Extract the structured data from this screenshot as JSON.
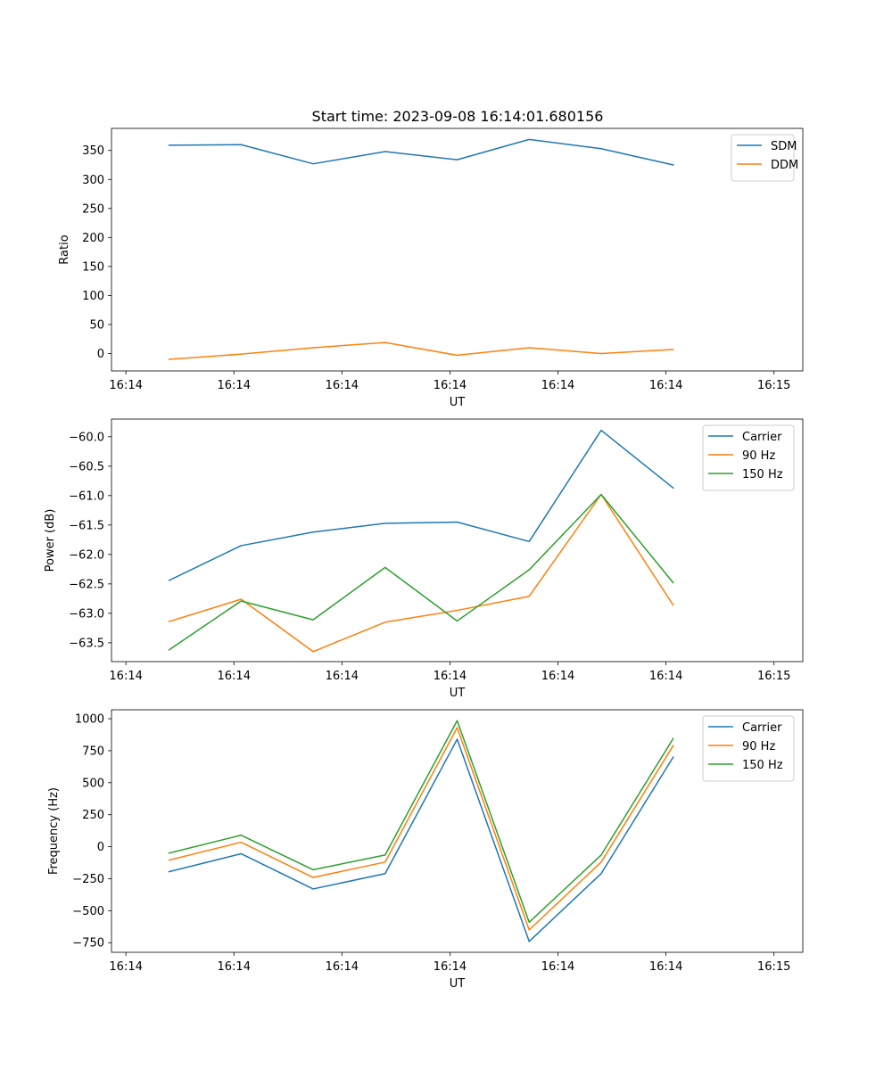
{
  "figure_title": "Start time: 2023-09-08 16:14:01.680156",
  "colors": {
    "blue": "#1f77b4",
    "orange": "#ff7f0e",
    "green": "#2ca02c"
  },
  "chart_data": [
    {
      "type": "line",
      "title": "Start time: 2023-09-08 16:14:01.680156",
      "xlabel": "UT",
      "ylabel": "Ratio",
      "xlim": [
        -0.8,
        8.8
      ],
      "ylim": [
        -30,
        388
      ],
      "x_ticks": [
        -0.6,
        0.9,
        2.4,
        3.9,
        5.4,
        6.9,
        8.4
      ],
      "x_tick_labels": [
        "16:14",
        "16:14",
        "16:14",
        "16:14",
        "16:14",
        "16:14",
        "16:15"
      ],
      "y_ticks": [
        0,
        50,
        100,
        150,
        200,
        250,
        300,
        350
      ],
      "y_tick_labels": [
        "0",
        "50",
        "100",
        "150",
        "200",
        "250",
        "300",
        "350"
      ],
      "x": [
        0,
        1,
        2,
        3,
        4,
        5,
        6,
        7
      ],
      "legend_location": "upper right",
      "series": [
        {
          "name": "SDM",
          "color": "#1f77b4",
          "values": [
            359,
            360,
            327,
            348,
            334,
            369,
            353,
            325
          ]
        },
        {
          "name": "DDM",
          "color": "#ff7f0e",
          "values": [
            -10,
            -1,
            10,
            19,
            -3,
            10,
            0,
            7
          ]
        }
      ]
    },
    {
      "type": "line",
      "title": "",
      "xlabel": "UT",
      "ylabel": "Power (dB)",
      "xlim": [
        -0.8,
        8.8
      ],
      "ylim": [
        -63.82,
        -59.7
      ],
      "x_ticks": [
        -0.6,
        0.9,
        2.4,
        3.9,
        5.4,
        6.9,
        8.4
      ],
      "x_tick_labels": [
        "16:14",
        "16:14",
        "16:14",
        "16:14",
        "16:14",
        "16:14",
        "16:15"
      ],
      "y_ticks": [
        -63.5,
        -63.0,
        -62.5,
        -62.0,
        -61.5,
        -61.0,
        -60.5,
        -60.0
      ],
      "y_tick_labels": [
        "−63.5",
        "−63.0",
        "−62.5",
        "−62.0",
        "−61.5",
        "−61.0",
        "−60.5",
        "−60.0"
      ],
      "x": [
        0,
        1,
        2,
        3,
        4,
        5,
        6,
        7
      ],
      "legend_location": "upper right",
      "series": [
        {
          "name": "Carrier",
          "color": "#1f77b4",
          "values": [
            -62.44,
            -61.85,
            -61.62,
            -61.47,
            -61.45,
            -61.78,
            -59.89,
            -60.87
          ]
        },
        {
          "name": "90 Hz",
          "color": "#ff7f0e",
          "values": [
            -63.14,
            -62.76,
            -63.65,
            -63.15,
            -62.95,
            -62.71,
            -60.98,
            -62.86
          ]
        },
        {
          "name": "150 Hz",
          "color": "#2ca02c",
          "values": [
            -63.62,
            -62.79,
            -63.11,
            -62.22,
            -63.13,
            -62.26,
            -60.98,
            -62.48
          ]
        }
      ]
    },
    {
      "type": "line",
      "title": "",
      "xlabel": "UT",
      "ylabel": "Frequency (Hz)",
      "xlim": [
        -0.8,
        8.8
      ],
      "ylim": [
        -825,
        1070
      ],
      "x_ticks": [
        -0.6,
        0.9,
        2.4,
        3.9,
        5.4,
        6.9,
        8.4
      ],
      "x_tick_labels": [
        "16:14",
        "16:14",
        "16:14",
        "16:14",
        "16:14",
        "16:14",
        "16:15"
      ],
      "y_ticks": [
        -750,
        -500,
        -250,
        0,
        250,
        500,
        750,
        1000
      ],
      "y_tick_labels": [
        "−750",
        "−500",
        "−250",
        "0",
        "250",
        "500",
        "750",
        "1000"
      ],
      "x": [
        0,
        1,
        2,
        3,
        4,
        5,
        6,
        7
      ],
      "legend_location": "upper right",
      "series": [
        {
          "name": "Carrier",
          "color": "#1f77b4",
          "values": [
            -195,
            -55,
            -330,
            -210,
            840,
            -740,
            -210,
            700
          ]
        },
        {
          "name": "90 Hz",
          "color": "#ff7f0e",
          "values": [
            -105,
            35,
            -240,
            -120,
            930,
            -650,
            -120,
            790
          ]
        },
        {
          "name": "150 Hz",
          "color": "#2ca02c",
          "values": [
            -50,
            90,
            -180,
            -65,
            985,
            -590,
            -65,
            845
          ]
        }
      ]
    }
  ]
}
